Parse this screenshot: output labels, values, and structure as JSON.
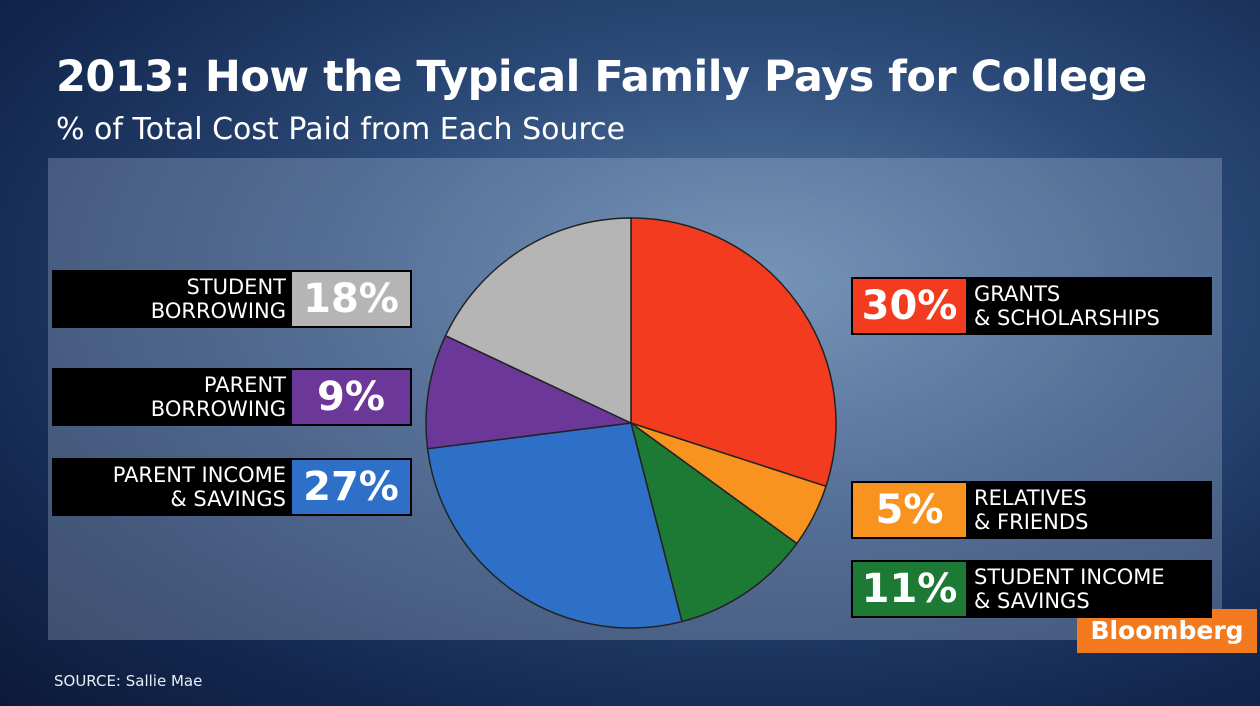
{
  "chart_data": {
    "type": "pie",
    "title": "2013: How the Typical Family Pays for College",
    "subtitle": "% of Total Cost Paid from Each Source",
    "categories": [
      "GRANTS\n& SCHOLARSHIPS",
      "RELATIVES\n& FRIENDS",
      "STUDENT INCOME\n& SAVINGS",
      "PARENT INCOME\n& SAVINGS",
      "PARENT\nBORROWING",
      "STUDENT\nBORROWING"
    ],
    "values": [
      30,
      5,
      11,
      27,
      9,
      18
    ],
    "value_labels": [
      "30%",
      "5%",
      "11%",
      "27%",
      "9%",
      "18%"
    ],
    "colors": [
      "#f23b1f",
      "#f7931e",
      "#1d7a35",
      "#2e70c8",
      "#6b3799",
      "#b5b5b5"
    ],
    "source": "SOURCE: Sallie Mae",
    "logo": "Bloomberg"
  }
}
